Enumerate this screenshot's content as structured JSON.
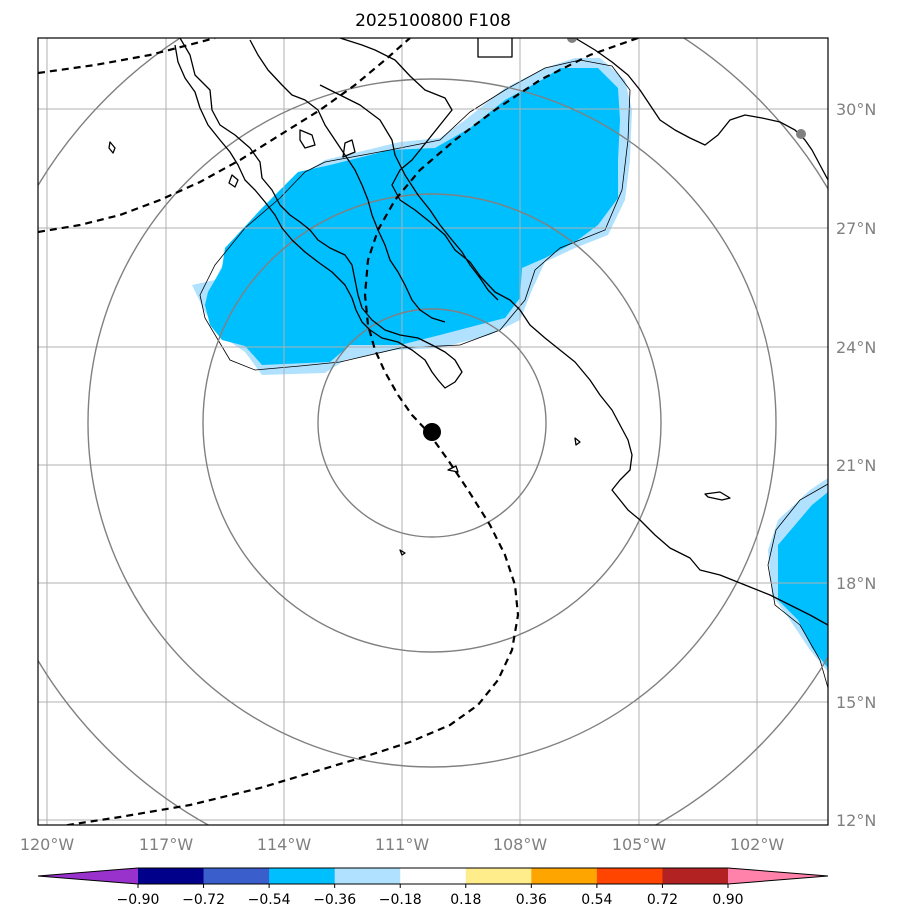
{
  "title": "2025100800 F108",
  "latitude_ticks": [
    "30°N",
    "27°N",
    "24°N",
    "21°N",
    "18°N",
    "15°N",
    "12°N"
  ],
  "longitude_ticks": [
    "120°W",
    "117°W",
    "114°W",
    "111°W",
    "108°W",
    "105°W",
    "102°W"
  ],
  "colorbar": {
    "ticks": [
      "−0.90",
      "−0.72",
      "−0.54",
      "−0.36",
      "−0.18",
      "0.18",
      "0.36",
      "0.54",
      "0.72",
      "0.90"
    ],
    "colors": [
      "#9932cc",
      "#00008b",
      "#3a5fcd",
      "#00bfff",
      "#b0e2ff",
      "#ffffff",
      "#ffec8b",
      "#ffa500",
      "#ff4500",
      "#b22222",
      "#ff82ab"
    ]
  },
  "colors": {
    "shading_strong": "#00bfff",
    "shading_light": "#b0e2ff",
    "grid": "#b0b0b0",
    "range_rings": "#808080",
    "coastline": "#000000",
    "track": "#000000",
    "tick_text": "#808080"
  },
  "map": {
    "projection": "lat-lon",
    "extent_lon": [
      -120.2,
      -100.2
    ],
    "extent_lat": [
      11.9,
      31.8
    ],
    "center_marker": {
      "lon": -110.0,
      "lat": 21.8
    },
    "range_rings": 4,
    "track_style": "dashed"
  }
}
